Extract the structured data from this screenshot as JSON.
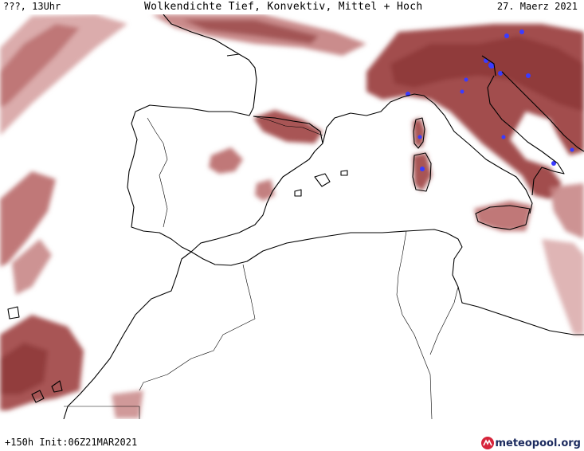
{
  "header": {
    "left": "???, 13Uhr",
    "title": "Wolkendichte  Tief, Konvektiv, Mittel + Hoch",
    "date": "27. Maerz 2021"
  },
  "footer": {
    "run": "+150h Init:06Z21MAR2021",
    "brand": "meteopool.org"
  },
  "colors": {
    "cloud_light": "#d9a8a8",
    "cloud_mid": "#b96a6a",
    "cloud_dark": "#8e3838",
    "convective": "#3b3bff",
    "coast": "#000000"
  },
  "icons": {
    "brand": "meteopool-logo-icon"
  }
}
